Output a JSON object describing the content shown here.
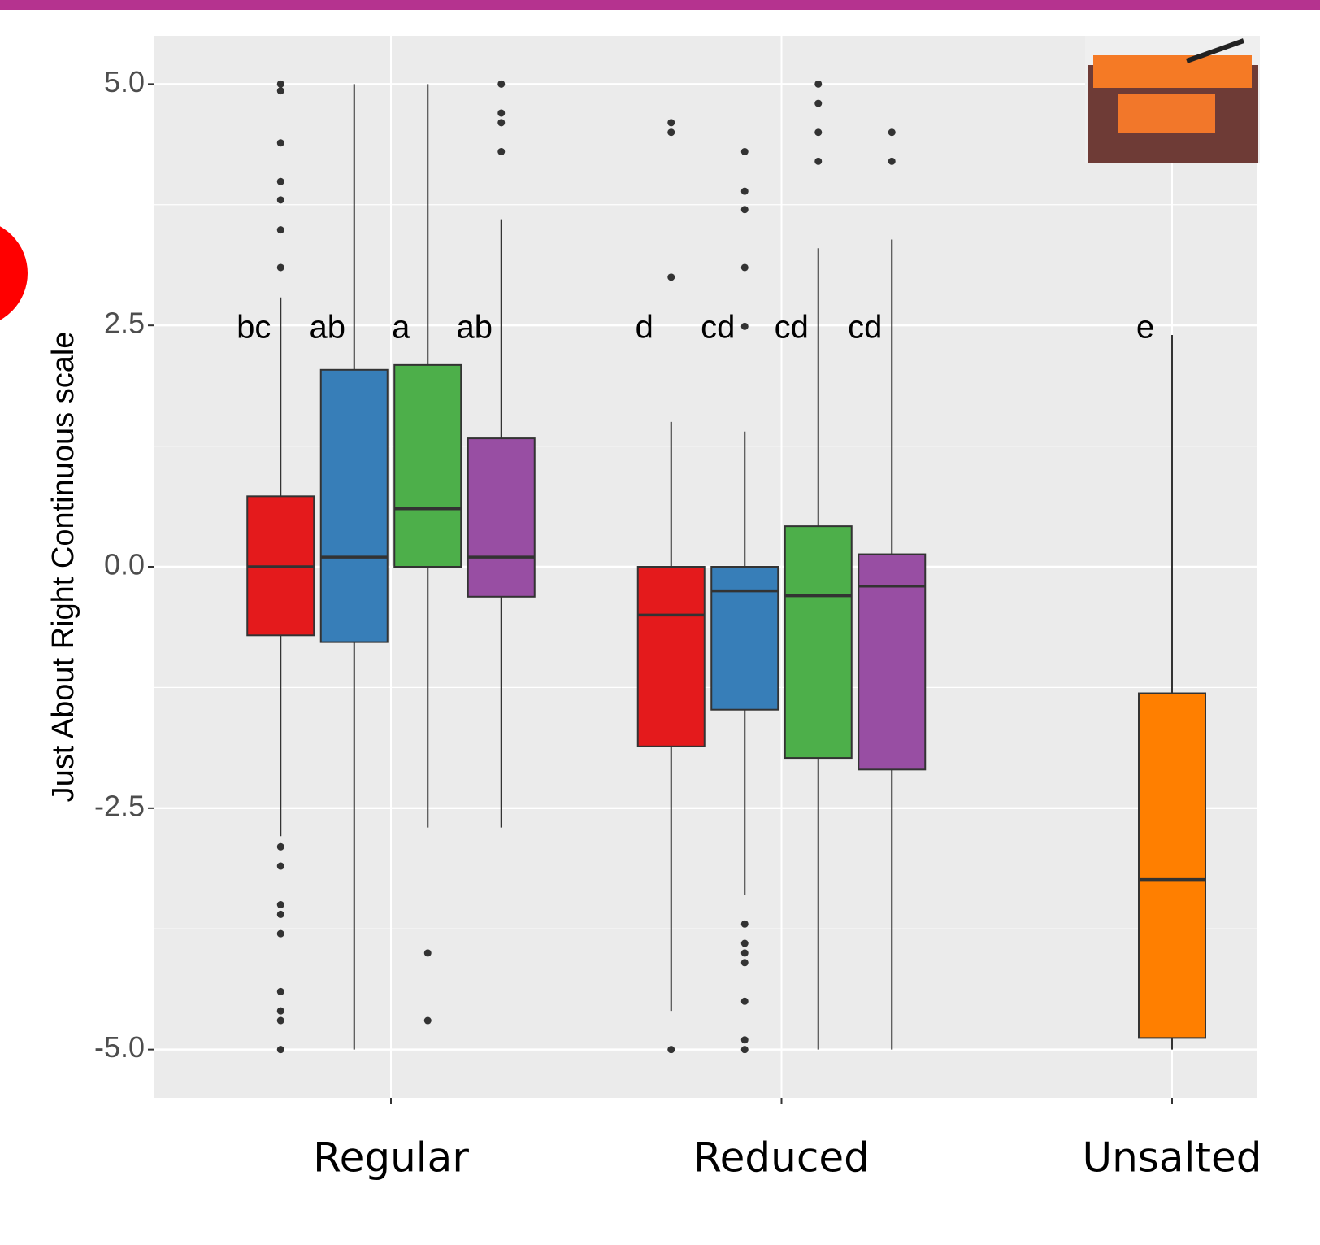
{
  "chart_data": {
    "type": "boxplot",
    "y_label": "Just About Right Continuous scale",
    "categories": [
      "Regular",
      "Reduced",
      "Unsalted"
    ],
    "ylim": [
      -5.5,
      5.5
    ],
    "yticks": [
      {
        "value": 5,
        "label": "5.0"
      },
      2.5,
      {
        "value": 0,
        "label": "0.0"
      },
      -2.5,
      {
        "value": -5,
        "label": "-5.0"
      }
    ],
    "minor_yticks": [
      3.75,
      1.25,
      -1.25,
      -3.75
    ],
    "grid": true,
    "groups": [
      {
        "boxes": [
          {
            "color": "#e41a1c",
            "low": -2.79,
            "q1": -0.71,
            "median": 0,
            "q3": 0.73,
            "high": 2.79,
            "outliers": [
              5.0,
              4.93,
              4.39,
              3.99,
              3.8,
              3.49,
              3.1,
              -2.9,
              -3.1,
              -3.5,
              -3.6,
              -3.8,
              -4.4,
              -4.6,
              -4.7,
              -5.0
            ],
            "label": "bc"
          },
          {
            "color": "#377eb8",
            "low": -5.0,
            "q1": -0.78,
            "median": 0.1,
            "q3": 2.04,
            "high": 5.0,
            "outliers": [],
            "label": "ab"
          },
          {
            "color": "#4daf4a",
            "low": -2.7,
            "q1": 0,
            "median": 0.6,
            "q3": 2.09,
            "high": 5.0,
            "outliers": [
              -4.0,
              -4.7
            ],
            "label": "a"
          },
          {
            "color": "#984ea3",
            "low": -2.7,
            "q1": -0.31,
            "median": 0.1,
            "q3": 1.33,
            "high": 3.6,
            "outliers": [
              5.0,
              4.7,
              4.6,
              4.3
            ],
            "label": "ab"
          }
        ]
      },
      {
        "boxes": [
          {
            "color": "#e41a1c",
            "low": -4.6,
            "q1": -1.86,
            "median": -0.5,
            "q3": 0,
            "high": 1.5,
            "outliers": [
              4.6,
              4.5,
              3.0,
              -5.0
            ],
            "label": "d"
          },
          {
            "color": "#377eb8",
            "low": -3.4,
            "q1": -1.48,
            "median": -0.25,
            "q3": 0,
            "high": 1.4,
            "outliers": [
              4.3,
              3.89,
              3.7,
              3.1,
              2.49,
              -3.7,
              -3.9,
              -4.0,
              -4.1,
              -4.5,
              -4.9,
              -5.0
            ],
            "label": "cd"
          },
          {
            "color": "#4daf4a",
            "low": -5.0,
            "q1": -1.98,
            "median": -0.3,
            "q3": 0.42,
            "high": 3.3,
            "outliers": [
              5.0,
              4.8,
              4.5,
              4.2
            ],
            "label": "cd"
          },
          {
            "color": "#984ea3",
            "low": -5.0,
            "q1": -2.1,
            "median": -0.2,
            "q3": 0.13,
            "high": 3.39,
            "outliers": [
              4.5,
              4.2
            ],
            "label": "cd"
          }
        ]
      },
      {
        "boxes": [
          {
            "color": "#ff7f00",
            "low": -5.0,
            "q1": -4.88,
            "median": -3.24,
            "q3": -1.31,
            "high": 2.4,
            "outliers": [],
            "label": "e"
          }
        ]
      }
    ]
  }
}
